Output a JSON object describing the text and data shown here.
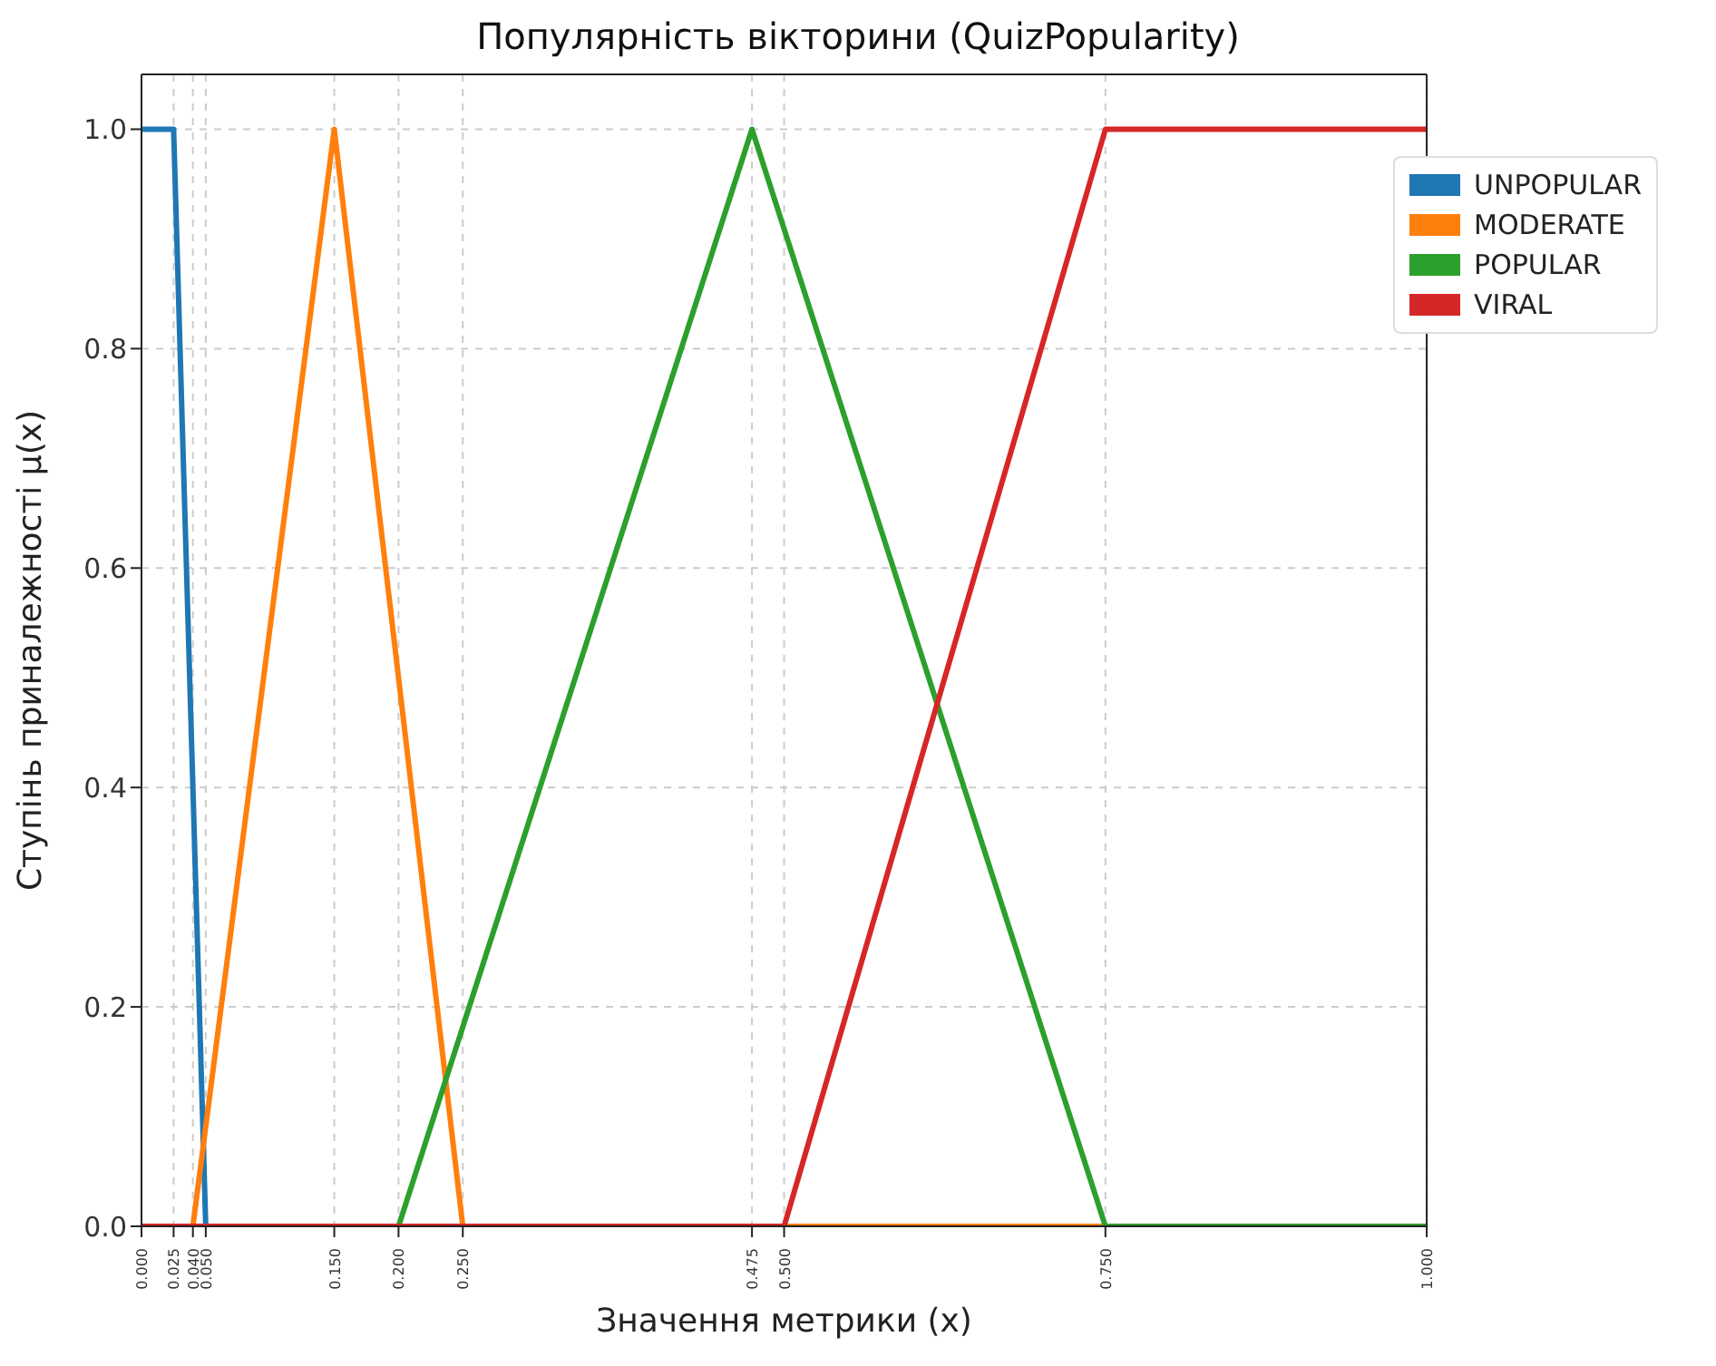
{
  "chart_data": {
    "type": "line",
    "title": "Популярність вікторини (QuizPopularity)",
    "xlabel": "Значення метрики (x)",
    "ylabel": "Ступінь приналежності μ(x)",
    "xlim": [
      0,
      1
    ],
    "xticks": [
      {
        "value": 0,
        "label": "0.000"
      },
      {
        "value": 0.025,
        "label": "0.025"
      },
      {
        "value": 0.04,
        "label": "0.040"
      },
      {
        "value": 0.05,
        "label": "0.050"
      },
      {
        "value": 0.15,
        "label": "0.150"
      },
      {
        "value": 0.2,
        "label": "0.200"
      },
      {
        "value": 0.25,
        "label": "0.250"
      },
      {
        "value": 0.475,
        "label": "0.475"
      },
      {
        "value": 0.5,
        "label": "0.500"
      },
      {
        "value": 0.75,
        "label": "0.750"
      },
      {
        "value": 1,
        "label": "1.000"
      }
    ],
    "ylim": [
      0,
      1.05
    ],
    "yticks": [
      {
        "value": 0,
        "label": "0.0"
      },
      {
        "value": 0.2,
        "label": "0.2"
      },
      {
        "value": 0.4,
        "label": "0.4"
      },
      {
        "value": 0.6,
        "label": "0.6"
      },
      {
        "value": 0.8,
        "label": "0.8"
      },
      {
        "value": 1,
        "label": "1.0"
      }
    ],
    "grid": true,
    "legend": "top right",
    "line_style": "solid",
    "marker": "none",
    "series": [
      {
        "name": "UNPOPULAR",
        "color": "#1f77b4",
        "x": [
          0,
          0.025,
          0.05
        ],
        "values": [
          1,
          1,
          0
        ]
      },
      {
        "name": "MODERATE",
        "color": "#ff7f0e",
        "x": [
          0,
          0.04,
          0.15,
          0.25,
          1
        ],
        "values": [
          0,
          0,
          1,
          0,
          0
        ]
      },
      {
        "name": "POPULAR",
        "color": "#2ca02c",
        "x": [
          0,
          0.2,
          0.475,
          0.75,
          1
        ],
        "values": [
          0,
          0,
          1,
          0,
          0
        ]
      },
      {
        "name": "VIRAL",
        "color": "#d62728",
        "x": [
          0,
          0.5,
          0.75,
          1
        ],
        "values": [
          0,
          0,
          1,
          1
        ]
      }
    ]
  }
}
